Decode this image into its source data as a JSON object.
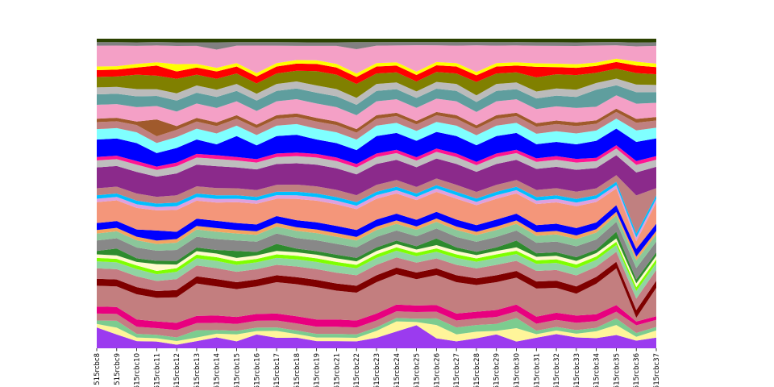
{
  "chart_data": {
    "type": "area",
    "stacked": true,
    "normalized": true,
    "title": "",
    "xlabel": "",
    "ylabel": "",
    "ylim": [
      0,
      1
    ],
    "grid": false,
    "legend": "none",
    "categories": [
      "515rcbc8",
      "515rcbc9",
      "515rcbc10",
      "515rcbc11",
      "515rcbc12",
      "515rcbc13",
      "515rcbc14",
      "515rcbc15",
      "515rcbc16",
      "515rcbc17",
      "515rcbc18",
      "515rcbc19",
      "515rcbc21",
      "515rcbc22",
      "515rcbc23",
      "515rcbc24",
      "515rcbc25",
      "515rcbc26",
      "515rcbc27",
      "515rcbc28",
      "515rcbc29",
      "515rcbc30",
      "515rcbc31",
      "515rcbc32",
      "515rcbc33",
      "515rcbc34",
      "515rcbc35",
      "515rcbc36",
      "515rcbc37"
    ],
    "series_colors": [
      "#9b3bef",
      "#fff59a",
      "#7ccc8f",
      "#c47d83",
      "#e8007f",
      "#c37e7f",
      "#7f0000",
      "#c47d83",
      "#90d4a2",
      "#7fff00",
      "#fffacd",
      "#2e8b2e",
      "#888888",
      "#8bc79a",
      "#f4a460",
      "#0000ff",
      "#f4967a",
      "#dfa0dd",
      "#00bfff",
      "#c08080",
      "#8b2a8b",
      "#bebebe",
      "#ff1493",
      "#0000ff",
      "#7fffff",
      "#c08080",
      "#a05a2c",
      "#f4a0c6",
      "#5f9e9e",
      "#bbbbbb",
      "#808000",
      "#ff0000",
      "#ffff00",
      "#f4a0c6",
      "#808080",
      "#2b4200"
    ],
    "series": [
      {
        "values": [
          0.06,
          0.04,
          0.02,
          0.02,
          0.01,
          0.02,
          0.03,
          0.02,
          0.04,
          0.03,
          0.03,
          0.02,
          0.02,
          0.02,
          0.03,
          0.05,
          0.07,
          0.03,
          0.02,
          0.03,
          0.04,
          0.02,
          0.03,
          0.04,
          0.03,
          0.03,
          0.04,
          0.02,
          0.03
        ]
      },
      {
        "values": [
          0.01,
          0.02,
          0.01,
          0.01,
          0.01,
          0.01,
          0.01,
          0.02,
          0.01,
          0.02,
          0.01,
          0.01,
          0.01,
          0.01,
          0.02,
          0.03,
          0.01,
          0.04,
          0.02,
          0.02,
          0.01,
          0.04,
          0.01,
          0.01,
          0.01,
          0.02,
          0.03,
          0.01,
          0.02
        ]
      },
      {
        "values": [
          0.01,
          0.02,
          0.01,
          0.01,
          0.01,
          0.02,
          0.01,
          0.01,
          0.01,
          0.01,
          0.01,
          0.01,
          0.01,
          0.01,
          0.01,
          0.01,
          0.01,
          0.02,
          0.02,
          0.02,
          0.02,
          0.03,
          0.01,
          0.01,
          0.01,
          0.01,
          0.02,
          0.01,
          0.01
        ]
      },
      {
        "values": [
          0.02,
          0.02,
          0.02,
          0.02,
          0.02,
          0.02,
          0.02,
          0.02,
          0.02,
          0.02,
          0.02,
          0.02,
          0.02,
          0.02,
          0.02,
          0.02,
          0.02,
          0.02,
          0.02,
          0.02,
          0.02,
          0.02,
          0.02,
          0.02,
          0.02,
          0.02,
          0.02,
          0.02,
          0.02
        ]
      },
      {
        "values": [
          0.02,
          0.02,
          0.02,
          0.02,
          0.02,
          0.02,
          0.02,
          0.02,
          0.02,
          0.02,
          0.02,
          0.02,
          0.02,
          0.02,
          0.02,
          0.02,
          0.02,
          0.02,
          0.02,
          0.02,
          0.02,
          0.02,
          0.02,
          0.02,
          0.02,
          0.02,
          0.02,
          0.01,
          0.01
        ]
      },
      {
        "values": [
          0.06,
          0.06,
          0.07,
          0.07,
          0.07,
          0.09,
          0.08,
          0.08,
          0.08,
          0.09,
          0.09,
          0.09,
          0.08,
          0.08,
          0.09,
          0.09,
          0.08,
          0.09,
          0.09,
          0.08,
          0.08,
          0.08,
          0.08,
          0.07,
          0.06,
          0.09,
          0.11,
          0.01,
          0.08
        ]
      },
      {
        "values": [
          0.02,
          0.02,
          0.02,
          0.02,
          0.02,
          0.02,
          0.02,
          0.02,
          0.02,
          0.02,
          0.02,
          0.02,
          0.02,
          0.02,
          0.02,
          0.02,
          0.02,
          0.02,
          0.02,
          0.02,
          0.02,
          0.02,
          0.02,
          0.02,
          0.02,
          0.02,
          0.02,
          0.02,
          0.02
        ]
      },
      {
        "values": [
          0.03,
          0.03,
          0.03,
          0.03,
          0.03,
          0.03,
          0.03,
          0.03,
          0.03,
          0.03,
          0.03,
          0.03,
          0.03,
          0.03,
          0.03,
          0.03,
          0.03,
          0.03,
          0.03,
          0.03,
          0.03,
          0.03,
          0.03,
          0.03,
          0.03,
          0.03,
          0.03,
          0.03,
          0.03
        ]
      },
      {
        "values": [
          0.02,
          0.02,
          0.02,
          0.02,
          0.02,
          0.02,
          0.02,
          0.02,
          0.02,
          0.02,
          0.02,
          0.02,
          0.02,
          0.02,
          0.02,
          0.02,
          0.02,
          0.02,
          0.02,
          0.02,
          0.02,
          0.02,
          0.02,
          0.02,
          0.02,
          0.02,
          0.02,
          0.02,
          0.02
        ]
      },
      {
        "values": [
          0.01,
          0.01,
          0.01,
          0.01,
          0.01,
          0.01,
          0.01,
          0.01,
          0.01,
          0.01,
          0.01,
          0.01,
          0.01,
          0.01,
          0.01,
          0.01,
          0.01,
          0.01,
          0.01,
          0.01,
          0.01,
          0.01,
          0.01,
          0.01,
          0.01,
          0.01,
          0.01,
          0.01,
          0.01
        ]
      },
      {
        "values": [
          0.01,
          0.01,
          0.01,
          0.02,
          0.01,
          0.01,
          0.01,
          0.01,
          0.01,
          0.01,
          0.01,
          0.01,
          0.01,
          0.01,
          0.01,
          0.01,
          0.01,
          0.01,
          0.01,
          0.01,
          0.01,
          0.01,
          0.01,
          0.01,
          0.01,
          0.01,
          0.01,
          0.01,
          0.01
        ]
      },
      {
        "values": [
          0.01,
          0.02,
          0.01,
          0.01,
          0.01,
          0.01,
          0.01,
          0.02,
          0.01,
          0.02,
          0.01,
          0.01,
          0.01,
          0.01,
          0.01,
          0.01,
          0.01,
          0.02,
          0.01,
          0.01,
          0.01,
          0.02,
          0.01,
          0.01,
          0.01,
          0.01,
          0.02,
          0.01,
          0.01
        ]
      },
      {
        "values": [
          0.03,
          0.03,
          0.03,
          0.03,
          0.03,
          0.03,
          0.03,
          0.03,
          0.03,
          0.03,
          0.03,
          0.03,
          0.03,
          0.03,
          0.03,
          0.03,
          0.03,
          0.03,
          0.03,
          0.03,
          0.03,
          0.03,
          0.03,
          0.03,
          0.03,
          0.03,
          0.03,
          0.03,
          0.03
        ]
      },
      {
        "values": [
          0.02,
          0.02,
          0.02,
          0.02,
          0.02,
          0.02,
          0.02,
          0.02,
          0.02,
          0.02,
          0.02,
          0.02,
          0.02,
          0.02,
          0.02,
          0.02,
          0.02,
          0.02,
          0.02,
          0.02,
          0.02,
          0.02,
          0.02,
          0.02,
          0.02,
          0.02,
          0.02,
          0.02,
          0.02
        ]
      },
      {
        "values": [
          0.01,
          0.01,
          0.01,
          0.01,
          0.01,
          0.01,
          0.01,
          0.01,
          0.01,
          0.01,
          0.01,
          0.01,
          0.01,
          0.01,
          0.01,
          0.01,
          0.01,
          0.01,
          0.01,
          0.01,
          0.01,
          0.01,
          0.01,
          0.01,
          0.01,
          0.01,
          0.01,
          0.01,
          0.01
        ]
      },
      {
        "values": [
          0.02,
          0.02,
          0.02,
          0.03,
          0.02,
          0.02,
          0.02,
          0.02,
          0.02,
          0.02,
          0.02,
          0.02,
          0.02,
          0.02,
          0.02,
          0.02,
          0.02,
          0.02,
          0.02,
          0.02,
          0.02,
          0.02,
          0.02,
          0.02,
          0.02,
          0.02,
          0.02,
          0.02,
          0.02
        ]
      },
      {
        "values": [
          0.06,
          0.06,
          0.06,
          0.06,
          0.06,
          0.05,
          0.05,
          0.06,
          0.06,
          0.05,
          0.06,
          0.06,
          0.06,
          0.06,
          0.06,
          0.06,
          0.06,
          0.06,
          0.06,
          0.06,
          0.06,
          0.06,
          0.06,
          0.06,
          0.06,
          0.06,
          0.05,
          0.02,
          0.06
        ]
      },
      {
        "values": [
          0.01,
          0.01,
          0.01,
          0.01,
          0.01,
          0.01,
          0.01,
          0.01,
          0.01,
          0.01,
          0.01,
          0.01,
          0.01,
          0.01,
          0.01,
          0.01,
          0.01,
          0.01,
          0.01,
          0.01,
          0.01,
          0.01,
          0.01,
          0.01,
          0.01,
          0.01,
          0.01,
          0.01,
          0.01
        ]
      },
      {
        "values": [
          0.01,
          0.01,
          0.01,
          0.01,
          0.01,
          0.01,
          0.01,
          0.01,
          0.01,
          0.01,
          0.01,
          0.01,
          0.01,
          0.01,
          0.01,
          0.01,
          0.01,
          0.01,
          0.01,
          0.01,
          0.01,
          0.01,
          0.01,
          0.01,
          0.01,
          0.01,
          0.01,
          0.01,
          0.01
        ]
      },
      {
        "values": [
          0.02,
          0.02,
          0.02,
          0.02,
          0.02,
          0.02,
          0.02,
          0.02,
          0.02,
          0.02,
          0.02,
          0.02,
          0.02,
          0.02,
          0.02,
          0.02,
          0.02,
          0.02,
          0.02,
          0.02,
          0.02,
          0.02,
          0.02,
          0.02,
          0.02,
          0.02,
          0.02,
          0.1,
          0.02
        ]
      },
      {
        "values": [
          0.06,
          0.06,
          0.06,
          0.06,
          0.06,
          0.06,
          0.06,
          0.06,
          0.06,
          0.06,
          0.06,
          0.06,
          0.06,
          0.06,
          0.06,
          0.06,
          0.06,
          0.06,
          0.06,
          0.06,
          0.06,
          0.06,
          0.06,
          0.06,
          0.06,
          0.06,
          0.06,
          0.06,
          0.06
        ]
      },
      {
        "values": [
          0.02,
          0.02,
          0.02,
          0.02,
          0.02,
          0.02,
          0.02,
          0.02,
          0.02,
          0.02,
          0.02,
          0.02,
          0.02,
          0.02,
          0.02,
          0.02,
          0.02,
          0.02,
          0.02,
          0.02,
          0.02,
          0.02,
          0.02,
          0.02,
          0.02,
          0.02,
          0.02,
          0.02,
          0.02
        ]
      },
      {
        "values": [
          0.01,
          0.01,
          0.01,
          0.01,
          0.01,
          0.01,
          0.01,
          0.01,
          0.01,
          0.01,
          0.01,
          0.01,
          0.01,
          0.01,
          0.01,
          0.01,
          0.01,
          0.01,
          0.01,
          0.01,
          0.01,
          0.01,
          0.01,
          0.01,
          0.01,
          0.01,
          0.01,
          0.01,
          0.01
        ]
      },
      {
        "values": [
          0.05,
          0.05,
          0.05,
          0.04,
          0.04,
          0.04,
          0.03,
          0.06,
          0.04,
          0.05,
          0.05,
          0.04,
          0.04,
          0.04,
          0.05,
          0.05,
          0.05,
          0.05,
          0.05,
          0.05,
          0.05,
          0.05,
          0.04,
          0.04,
          0.04,
          0.05,
          0.05,
          0.05,
          0.05
        ]
      },
      {
        "values": [
          0.03,
          0.03,
          0.03,
          0.03,
          0.03,
          0.03,
          0.03,
          0.03,
          0.03,
          0.03,
          0.03,
          0.03,
          0.03,
          0.03,
          0.03,
          0.03,
          0.03,
          0.03,
          0.03,
          0.03,
          0.03,
          0.03,
          0.03,
          0.03,
          0.03,
          0.03,
          0.03,
          0.03,
          0.03
        ]
      },
      {
        "values": [
          0.02,
          0.02,
          0.02,
          0.02,
          0.02,
          0.02,
          0.02,
          0.02,
          0.02,
          0.02,
          0.02,
          0.02,
          0.02,
          0.02,
          0.02,
          0.02,
          0.02,
          0.02,
          0.02,
          0.02,
          0.02,
          0.02,
          0.02,
          0.02,
          0.02,
          0.02,
          0.02,
          0.02,
          0.02
        ]
      },
      {
        "values": [
          0.01,
          0.01,
          0.01,
          0.05,
          0.01,
          0.01,
          0.01,
          0.01,
          0.01,
          0.01,
          0.01,
          0.01,
          0.01,
          0.01,
          0.01,
          0.01,
          0.01,
          0.01,
          0.01,
          0.01,
          0.01,
          0.01,
          0.01,
          0.01,
          0.01,
          0.01,
          0.01,
          0.01,
          0.01
        ]
      },
      {
        "values": [
          0.04,
          0.04,
          0.04,
          0.04,
          0.04,
          0.04,
          0.04,
          0.04,
          0.04,
          0.04,
          0.04,
          0.04,
          0.04,
          0.04,
          0.04,
          0.04,
          0.04,
          0.04,
          0.04,
          0.04,
          0.04,
          0.04,
          0.04,
          0.04,
          0.04,
          0.04,
          0.04,
          0.04,
          0.04
        ]
      },
      {
        "values": [
          0.03,
          0.03,
          0.03,
          0.03,
          0.03,
          0.03,
          0.03,
          0.03,
          0.03,
          0.03,
          0.03,
          0.03,
          0.03,
          0.03,
          0.03,
          0.03,
          0.03,
          0.03,
          0.03,
          0.03,
          0.03,
          0.03,
          0.03,
          0.03,
          0.03,
          0.05,
          0.03,
          0.03,
          0.03
        ]
      },
      {
        "values": [
          0.02,
          0.02,
          0.02,
          0.02,
          0.02,
          0.02,
          0.02,
          0.02,
          0.02,
          0.02,
          0.02,
          0.02,
          0.02,
          0.02,
          0.02,
          0.02,
          0.02,
          0.02,
          0.02,
          0.02,
          0.02,
          0.02,
          0.02,
          0.02,
          0.02,
          0.02,
          0.02,
          0.02,
          0.02
        ]
      },
      {
        "values": [
          0.03,
          0.03,
          0.04,
          0.04,
          0.04,
          0.03,
          0.03,
          0.03,
          0.03,
          0.03,
          0.03,
          0.04,
          0.04,
          0.04,
          0.03,
          0.03,
          0.03,
          0.03,
          0.03,
          0.04,
          0.03,
          0.03,
          0.04,
          0.04,
          0.04,
          0.03,
          0.03,
          0.03,
          0.03
        ]
      },
      {
        "values": [
          0.02,
          0.02,
          0.02,
          0.03,
          0.02,
          0.02,
          0.02,
          0.02,
          0.02,
          0.02,
          0.02,
          0.02,
          0.02,
          0.02,
          0.02,
          0.02,
          0.02,
          0.02,
          0.02,
          0.02,
          0.02,
          0.02,
          0.03,
          0.02,
          0.02,
          0.02,
          0.02,
          0.02,
          0.02
        ]
      },
      {
        "values": [
          0.01,
          0.01,
          0.01,
          0.01,
          0.02,
          0.01,
          0.01,
          0.01,
          0.01,
          0.01,
          0.01,
          0.01,
          0.01,
          0.01,
          0.01,
          0.01,
          0.01,
          0.01,
          0.01,
          0.01,
          0.01,
          0.01,
          0.01,
          0.01,
          0.01,
          0.01,
          0.01,
          0.01,
          0.01
        ]
      },
      {
        "values": [
          0.06,
          0.06,
          0.05,
          0.05,
          0.05,
          0.05,
          0.05,
          0.05,
          0.08,
          0.05,
          0.04,
          0.04,
          0.05,
          0.07,
          0.05,
          0.05,
          0.08,
          0.05,
          0.05,
          0.08,
          0.05,
          0.05,
          0.05,
          0.05,
          0.05,
          0.05,
          0.04,
          0.04,
          0.05
        ]
      },
      {
        "values": [
          0.01,
          0.01,
          0.01,
          0.01,
          0.01,
          0.01,
          0.02,
          0.01,
          0.01,
          0.01,
          0.01,
          0.01,
          0.01,
          0.02,
          0.01,
          0.01,
          0.01,
          0.01,
          0.01,
          0.01,
          0.01,
          0.01,
          0.01,
          0.01,
          0.01,
          0.01,
          0.01,
          0.01,
          0.01
        ]
      },
      {
        "values": [
          0.01,
          0.01,
          0.01,
          0.01,
          0.01,
          0.01,
          0.01,
          0.01,
          0.01,
          0.01,
          0.01,
          0.01,
          0.01,
          0.01,
          0.01,
          0.01,
          0.01,
          0.01,
          0.01,
          0.01,
          0.01,
          0.01,
          0.01,
          0.01,
          0.01,
          0.01,
          0.01,
          0.01,
          0.01
        ]
      }
    ]
  }
}
